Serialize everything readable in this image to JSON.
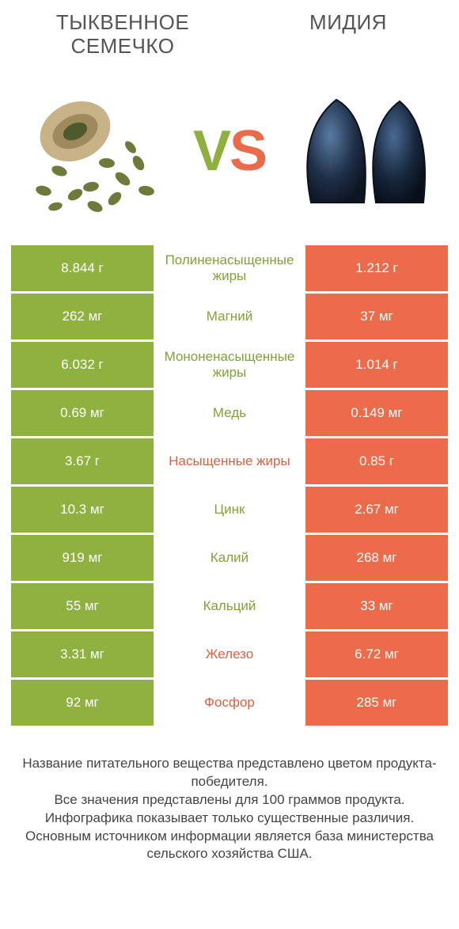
{
  "colors": {
    "green": "#8fb140",
    "orange": "#eb6b4a",
    "green_text": "#80a335",
    "orange_text": "#e05e3d",
    "background": "#ffffff",
    "title_text": "#555555",
    "footer_text": "#444444"
  },
  "typography": {
    "title_fontsize": 26,
    "vs_fontsize": 72,
    "cell_fontsize": 17,
    "label_fontsize": 17,
    "footer_fontsize": 17
  },
  "header": {
    "left_title": "ТЫКВЕННОЕ СЕМЕЧКО",
    "right_title": "МИДИЯ",
    "vs_v": "V",
    "vs_s": "S"
  },
  "rows": [
    {
      "left": "8.844 г",
      "label": "Полиненасыщенные жиры",
      "right": "1.212 г",
      "winner": "left"
    },
    {
      "left": "262 мг",
      "label": "Магний",
      "right": "37 мг",
      "winner": "left"
    },
    {
      "left": "6.032 г",
      "label": "Мононенасыщенные жиры",
      "right": "1.014 г",
      "winner": "left"
    },
    {
      "left": "0.69 мг",
      "label": "Медь",
      "right": "0.149 мг",
      "winner": "left"
    },
    {
      "left": "3.67 г",
      "label": "Насыщенные жиры",
      "right": "0.85 г",
      "winner": "right"
    },
    {
      "left": "10.3 мг",
      "label": "Цинк",
      "right": "2.67 мг",
      "winner": "left"
    },
    {
      "left": "919 мг",
      "label": "Калий",
      "right": "268 мг",
      "winner": "left"
    },
    {
      "left": "55 мг",
      "label": "Кальций",
      "right": "33 мг",
      "winner": "left"
    },
    {
      "left": "3.31 мг",
      "label": "Железо",
      "right": "6.72 мг",
      "winner": "right"
    },
    {
      "left": "92 мг",
      "label": "Фосфор",
      "right": "285 мг",
      "winner": "right"
    }
  ],
  "footer": {
    "line1": "Название питательного вещества представлено цветом продукта-победителя.",
    "line2": "Все значения представлены для 100 граммов продукта.",
    "line3": "Инфографика показывает только существенные различия.",
    "line4": "Основным источником информации является база министерства сельского хозяйства США."
  }
}
